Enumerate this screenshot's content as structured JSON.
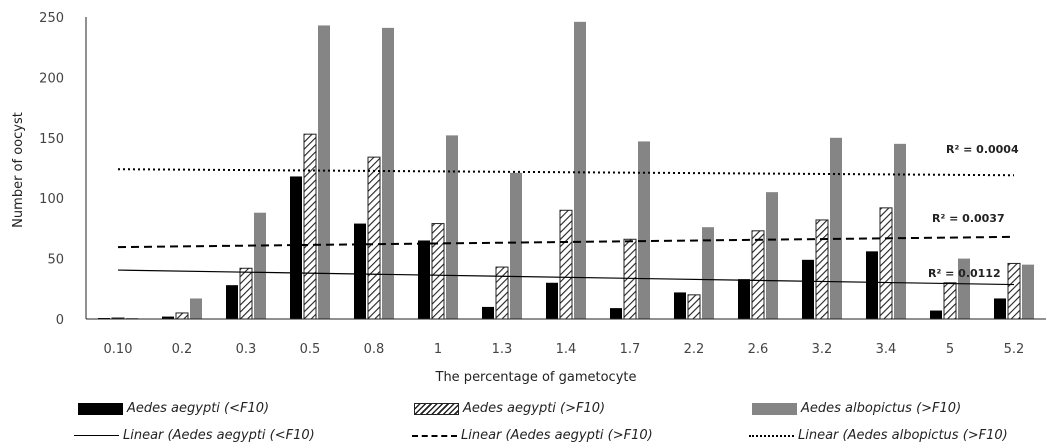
{
  "chart_data": {
    "type": "bar",
    "xlabel": "The percentage of gametocyte",
    "ylabel": "Number of oocyst",
    "ylim": [
      0,
      250
    ],
    "yticks": [
      "0",
      "50",
      "100",
      "150",
      "200",
      "250"
    ],
    "categories": [
      "0.10",
      "0.2",
      "0.3",
      "0.5",
      "0.8",
      "1",
      "1.3",
      "1.4",
      "1.7",
      "2.2",
      "2.6",
      "3.2",
      "3.4",
      "5",
      "5.2"
    ],
    "series": [
      {
        "name": "Aedes aegypti (<F10)",
        "style": "black",
        "values": [
          0,
          2,
          28,
          118,
          79,
          65,
          10,
          30,
          9,
          22,
          33,
          49,
          56,
          7,
          17
        ]
      },
      {
        "name": "Aedes aegypti (>F10)",
        "style": "hatch",
        "values": [
          0,
          5,
          42,
          153,
          134,
          79,
          43,
          90,
          66,
          20,
          73,
          82,
          92,
          30,
          46
        ]
      },
      {
        "name": "Aedes albopictus (>F10)",
        "style": "gray",
        "values": [
          0,
          17,
          88,
          243,
          241,
          152,
          121,
          246,
          147,
          76,
          105,
          150,
          145,
          50,
          45
        ]
      }
    ],
    "trendlines": [
      {
        "name": "Linear (Aedes aegypti (<F10)",
        "dash": "solid",
        "start": 40.5,
        "end": 28.5,
        "r2": "R² = 0.0112"
      },
      {
        "name": "Linear (Aedes aegypti (>F10)",
        "dash": "dashed",
        "start": 59.5,
        "end": 68,
        "r2": "R² = 0.0037"
      },
      {
        "name": "Linear (Aedes albopictus (>F10)",
        "dash": "dotted",
        "start": 124,
        "end": 119,
        "r2": "R² = 0.0004"
      }
    ],
    "legend_position": "bottom",
    "grid": false
  },
  "colors": {
    "black": "#000000",
    "gray": "#858585",
    "hatch": "#222222"
  }
}
